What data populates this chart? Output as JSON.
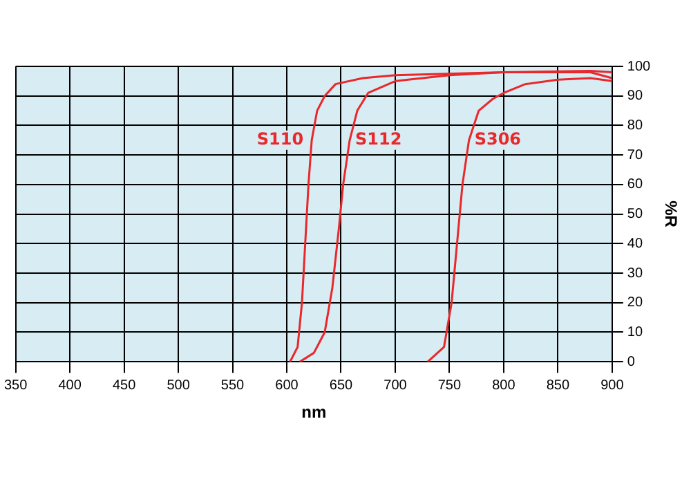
{
  "chart_data": {
    "type": "line",
    "xlabel": "nm",
    "ylabel": "%R",
    "xlim": [
      350,
      900
    ],
    "xticks": [
      350,
      400,
      450,
      500,
      550,
      600,
      650,
      700,
      750,
      800,
      850,
      900
    ],
    "ylim": [
      0,
      100
    ],
    "yticks": [
      0,
      10,
      20,
      30,
      40,
      50,
      60,
      70,
      80,
      90,
      100
    ],
    "grid": true,
    "legend": false,
    "marker": "none",
    "series": [
      {
        "name": "S110",
        "color": "#e8282b",
        "x": [
          603,
          610,
          614,
          617,
          620,
          623,
          628,
          635,
          645,
          670,
          700,
          800,
          880,
          900
        ],
        "values": [
          0,
          5,
          20,
          40,
          60,
          75,
          85,
          90,
          94,
          96,
          97,
          98,
          98.5,
          98
        ]
      },
      {
        "name": "S112",
        "color": "#e8282b",
        "x": [
          612,
          625,
          635,
          642,
          648,
          652,
          658,
          665,
          675,
          700,
          750,
          800,
          880,
          900
        ],
        "values": [
          0,
          3,
          10,
          25,
          45,
          60,
          75,
          85,
          91,
          95,
          97,
          98,
          98,
          96
        ]
      },
      {
        "name": "S306",
        "color": "#e8282b",
        "x": [
          730,
          745,
          752,
          757,
          762,
          768,
          777,
          790,
          800,
          820,
          850,
          880,
          900
        ],
        "values": [
          0,
          5,
          20,
          40,
          60,
          75,
          85,
          89,
          91,
          94,
          95.5,
          96,
          95
        ]
      }
    ]
  }
}
